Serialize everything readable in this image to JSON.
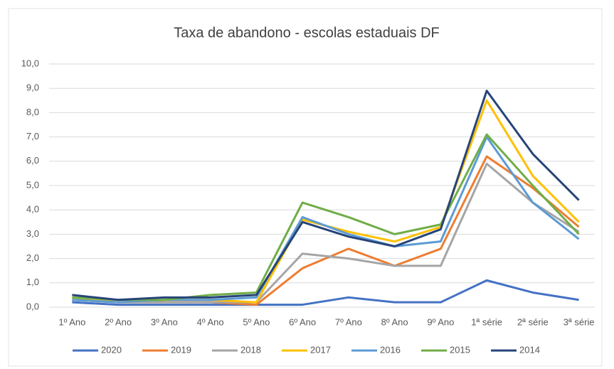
{
  "chart_data": {
    "type": "line",
    "title": "Taxa de abandono - escolas estaduais DF",
    "categories": [
      "1º Ano",
      "2º Ano",
      "3º Ano",
      "4º Ano",
      "5º Ano",
      "6º Ano",
      "7º Ano",
      "8º Ano",
      "9º Ano",
      "1ª série",
      "2ª série",
      "3ª série"
    ],
    "series": [
      {
        "name": "2020",
        "color": "#4472c4",
        "values": [
          0.2,
          0.1,
          0.1,
          0.1,
          0.1,
          0.1,
          0.4,
          0.2,
          0.2,
          1.1,
          0.6,
          0.3
        ]
      },
      {
        "name": "2019",
        "color": "#ed7d31",
        "values": [
          0.3,
          0.2,
          0.2,
          0.2,
          0.1,
          1.6,
          2.4,
          1.7,
          2.4,
          6.2,
          4.9,
          3.3
        ]
      },
      {
        "name": "2018",
        "color": "#a5a5a5",
        "values": [
          0.3,
          0.2,
          0.2,
          0.2,
          0.2,
          2.2,
          2.0,
          1.7,
          1.7,
          5.9,
          4.3,
          3.1
        ]
      },
      {
        "name": "2017",
        "color": "#ffc000",
        "values": [
          0.4,
          0.2,
          0.3,
          0.3,
          0.2,
          3.6,
          3.1,
          2.7,
          3.3,
          8.5,
          5.4,
          3.5
        ]
      },
      {
        "name": "2016",
        "color": "#5b9bd5",
        "values": [
          0.3,
          0.2,
          0.3,
          0.3,
          0.4,
          3.7,
          3.0,
          2.5,
          2.7,
          7.0,
          4.3,
          2.8
        ]
      },
      {
        "name": "2015",
        "color": "#70ad47",
        "values": [
          0.4,
          0.3,
          0.3,
          0.5,
          0.6,
          4.3,
          3.7,
          3.0,
          3.4,
          7.1,
          5.0,
          3.0
        ]
      },
      {
        "name": "2014",
        "color": "#264478",
        "values": [
          0.5,
          0.3,
          0.4,
          0.4,
          0.5,
          3.5,
          2.9,
          2.5,
          3.2,
          8.9,
          6.3,
          4.4
        ]
      }
    ],
    "ylim": [
      0,
      10
    ],
    "yticks": [
      {
        "value": 0,
        "label": "0,0"
      },
      {
        "value": 1,
        "label": "1,0"
      },
      {
        "value": 2,
        "label": "2,0"
      },
      {
        "value": 3,
        "label": "3,0"
      },
      {
        "value": 4,
        "label": "4,0"
      },
      {
        "value": 5,
        "label": "5,0"
      },
      {
        "value": 6,
        "label": "6,0"
      },
      {
        "value": 7,
        "label": "7,0"
      },
      {
        "value": 8,
        "label": "8,0"
      },
      {
        "value": 9,
        "label": "9,0"
      },
      {
        "value": 10,
        "label": "10,0"
      }
    ],
    "grid": true,
    "legend": "bottom"
  }
}
